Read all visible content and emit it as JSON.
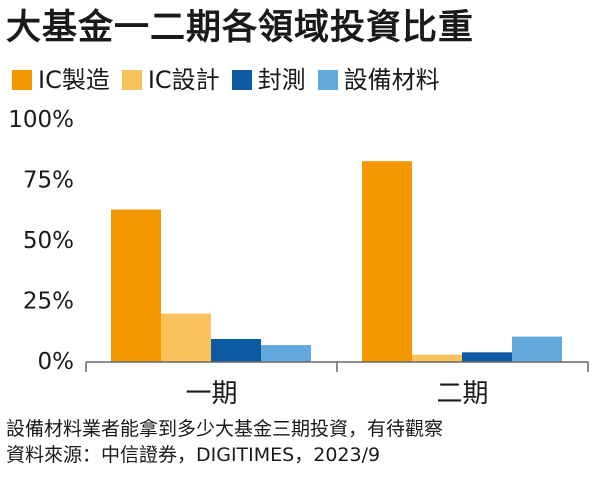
{
  "chart_data": {
    "type": "bar",
    "title": "大基金一二期各領域投資比重",
    "categories": [
      "一期",
      "二期"
    ],
    "series": [
      {
        "name": "IC製造",
        "color": "#f39800",
        "values": [
          63,
          83
        ]
      },
      {
        "name": "IC設計",
        "color": "#f9c25c",
        "values": [
          20,
          3
        ]
      },
      {
        "name": "封測",
        "color": "#0b5aa2",
        "values": [
          9.5,
          4
        ]
      },
      {
        "name": "設備材料",
        "color": "#62a8dc",
        "values": [
          7,
          10.5
        ]
      }
    ],
    "y_ticks": [
      "0%",
      "25%",
      "50%",
      "75%",
      "100%"
    ],
    "ylim": [
      0,
      100
    ],
    "xlabel": "",
    "ylabel": "",
    "legend_position": "top",
    "grid": false
  },
  "footnote": {
    "line1": "設備材料業者能拿到多少大基金三期投資，有待觀察",
    "line2": "資料來源：中信證券，DIGITIMES，2023/9"
  }
}
